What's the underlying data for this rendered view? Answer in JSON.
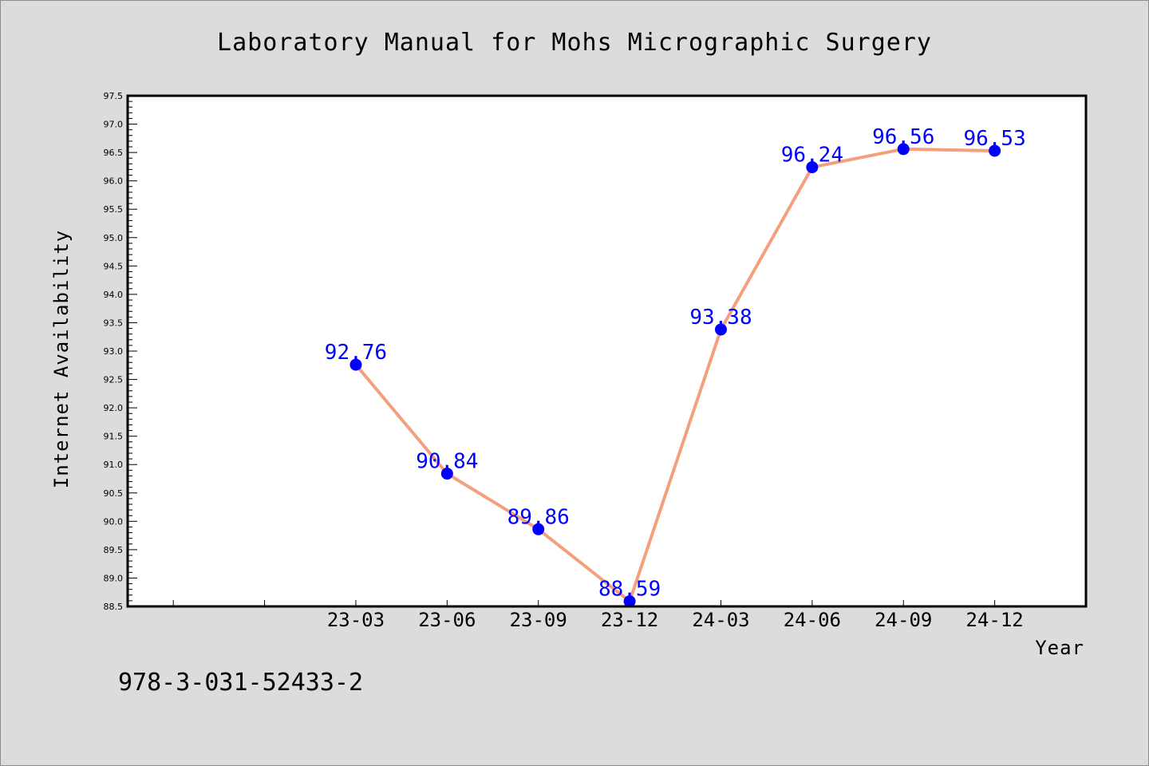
{
  "chart_data": {
    "type": "line",
    "title": "Laboratory Manual for Mohs Micrographic Surgery",
    "xlabel": "Year",
    "ylabel": "Internet Availability",
    "categories": [
      "23-03",
      "23-06",
      "23-09",
      "23-12",
      "24-03",
      "24-06",
      "24-09",
      "24-12"
    ],
    "series": [
      {
        "values": [
          92.76,
          90.84,
          89.86,
          88.59,
          93.38,
          96.24,
          96.56,
          96.53
        ],
        "color": "#f4a07e",
        "marker_color": "#0000ff"
      }
    ],
    "data_labels": [
      "92.76",
      "90.84",
      "89.86",
      "88.59",
      "93.38",
      "96.24",
      "96.56",
      "96.53"
    ],
    "ylim": [
      88.5,
      97.5
    ],
    "yticks": [
      "88.5",
      "89.0",
      "89.5",
      "90.0",
      "90.5",
      "91.0",
      "91.5",
      "92.0",
      "92.5",
      "93.0",
      "93.5",
      "94.0",
      "94.5",
      "95.0",
      "95.5",
      "96.0",
      "96.5",
      "97.0",
      "97.5"
    ],
    "ytick_step": 0.5,
    "yminor_step": 0.1,
    "leading_empty_ticks": 2,
    "grid": false,
    "legend": "none",
    "label_color": "#0000ff",
    "background": "#ffffff",
    "figure_background": "#dcdcdc"
  },
  "footer": {
    "isbn": "978-3-031-52433-2"
  }
}
